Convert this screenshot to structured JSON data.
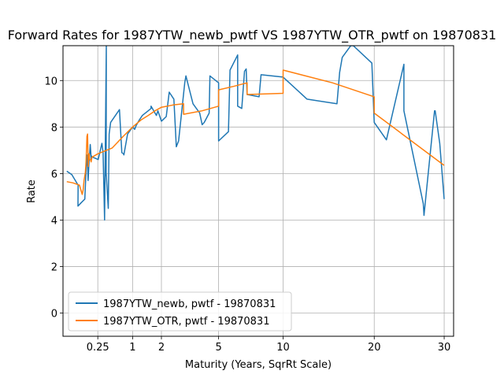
{
  "chart_data": {
    "type": "line",
    "title": "Forward Rates for 1987YTW_newb_pwtf VS 1987YTW_OTR_pwtf on 19870831",
    "xlabel": "Maturity (Years, SqrRt Scale)",
    "ylabel": "Rate",
    "x_scale": "sqrt",
    "xlim": [
      0,
      31.5
    ],
    "ylim": [
      -1,
      11.5
    ],
    "xticks": [
      0.25,
      1,
      2,
      5,
      10,
      20,
      30
    ],
    "xtick_labels": [
      "0.25",
      "1",
      "2",
      "5",
      "10",
      "20",
      "30"
    ],
    "yticks": [
      0,
      2,
      4,
      6,
      8,
      10
    ],
    "ytick_labels": [
      "0",
      "2",
      "4",
      "6",
      "8",
      "10"
    ],
    "grid": true,
    "legend_position": "lower-left",
    "series": [
      {
        "name": "1987YTW_newb, pwtf - 19870831",
        "color": "#1f77b4",
        "x": [
          0.003,
          0.016,
          0.047,
          0.046,
          0.069,
          0.098,
          0.111,
          0.121,
          0.13,
          0.139,
          0.153,
          0.165,
          0.17,
          0.174,
          0.184,
          0.256,
          0.312,
          0.332,
          0.357,
          0.388,
          0.385,
          0.37,
          0.424,
          0.44,
          0.468,
          0.659,
          0.714,
          0.756,
          0.765,
          0.86,
          1.0,
          1.06,
          1.1,
          1.2,
          1.3,
          1.5,
          1.6,
          1.6,
          1.8,
          1.86,
          2.0,
          2.2,
          2.33,
          2.54,
          2.65,
          2.76,
          3.06,
          3.12,
          3.49,
          3.86,
          4.0,
          4.12,
          4.41,
          4.46,
          5.0,
          5.0,
          5.65,
          5.76,
          6.3,
          6.3,
          6.6,
          6.8,
          6.93,
          7.0,
          7.94,
          8.1,
          10.0,
          12.3,
          15.5,
          15.8,
          16.1,
          17.1,
          17.4,
          19.7,
          20.0,
          21.6,
          24.0,
          24.0,
          26.8,
          26.9,
          28.5,
          28.6,
          29.3,
          30.0
        ],
        "y": [
          6.1,
          5.95,
          5.5,
          4.6,
          4.75,
          4.9,
          6.25,
          6.8,
          5.7,
          6.4,
          7.25,
          6.6,
          6.75,
          6.7,
          6.7,
          6.6,
          7.3,
          6.9,
          4.0,
          11.5,
          5.9,
          6.6,
          4.5,
          7.7,
          8.2,
          8.75,
          6.9,
          6.85,
          6.8,
          7.7,
          8.0,
          7.9,
          8.05,
          8.3,
          8.5,
          8.7,
          8.8,
          8.9,
          8.5,
          8.7,
          8.25,
          8.45,
          9.5,
          9.2,
          7.15,
          7.4,
          9.9,
          10.2,
          9.0,
          8.6,
          8.1,
          8.2,
          8.6,
          10.2,
          9.9,
          7.4,
          7.8,
          10.45,
          11.1,
          8.9,
          8.8,
          10.4,
          10.5,
          9.4,
          9.3,
          10.25,
          10.15,
          9.2,
          9.0,
          10.35,
          11.0,
          11.5,
          11.5,
          10.75,
          8.2,
          7.45,
          10.7,
          8.7,
          4.7,
          4.2,
          8.7,
          8.7,
          7.3,
          4.9
        ]
      },
      {
        "name": "1987YTW_OTR, pwtf - 19870831",
        "color": "#ff7f0e",
        "x": [
          0.003,
          0.02,
          0.056,
          0.076,
          0.084,
          0.091,
          0.103,
          0.11,
          0.118,
          0.125,
          0.131,
          0.14,
          0.147,
          0.156,
          0.163,
          0.172,
          0.25,
          0.5,
          0.75,
          1.0,
          1.25,
          1.5,
          1.75,
          2.0,
          2.25,
          2.5,
          3.0,
          3.0,
          4.0,
          5.0,
          5.0,
          6.0,
          7.0,
          7.0,
          10.0,
          10.0,
          15.0,
          20.0,
          20.0,
          30.0
        ],
        "y": [
          5.65,
          5.6,
          5.5,
          5.1,
          5.3,
          5.7,
          6.05,
          6.5,
          7.6,
          7.7,
          6.3,
          6.85,
          6.6,
          6.6,
          6.5,
          6.7,
          6.85,
          7.1,
          7.6,
          8.0,
          8.3,
          8.5,
          8.7,
          8.85,
          8.9,
          8.95,
          9.0,
          8.55,
          8.7,
          8.9,
          9.6,
          9.75,
          9.9,
          9.4,
          9.45,
          10.45,
          9.9,
          9.3,
          8.6,
          6.35
        ]
      }
    ]
  }
}
